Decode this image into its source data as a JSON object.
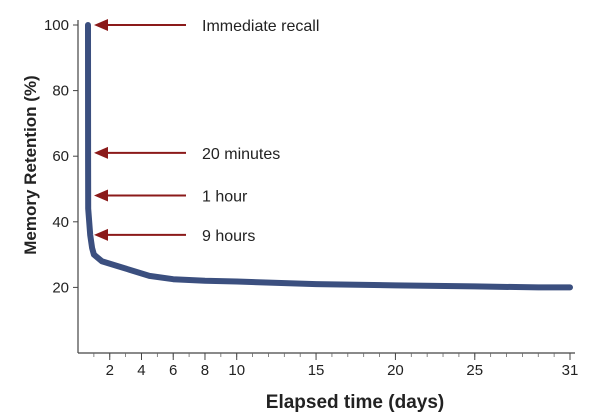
{
  "chart_data": {
    "type": "line",
    "title": "",
    "xlabel": "Elapsed time (days)",
    "ylabel": "Memory Retention (%)",
    "xlim": [
      0,
      31
    ],
    "ylim": [
      0,
      100
    ],
    "x_ticks": [
      2,
      4,
      6,
      8,
      10,
      15,
      20,
      25,
      31
    ],
    "y_ticks": [
      20,
      40,
      60,
      80,
      100
    ],
    "grid": false,
    "series": [
      {
        "color": "#3b4f7f",
        "points": [
          [
            0.0,
            100
          ],
          [
            0.014,
            58
          ],
          [
            0.042,
            44
          ],
          [
            0.375,
            36
          ],
          [
            0.7,
            32
          ],
          [
            1.0,
            30
          ],
          [
            1.5,
            28
          ],
          [
            2.5,
            26.5
          ],
          [
            3.5,
            25
          ],
          [
            4.5,
            23.5
          ],
          [
            6,
            22.5
          ],
          [
            8,
            22
          ],
          [
            10,
            21.8
          ],
          [
            15,
            21
          ],
          [
            20,
            20.6
          ],
          [
            25,
            20.3
          ],
          [
            29,
            20
          ],
          [
            31,
            20
          ]
        ]
      }
    ],
    "annotations": [
      {
        "text": "Immediate recall",
        "x": 0.0,
        "y": 100
      },
      {
        "text": "20 minutes",
        "x": 0.014,
        "y": 61
      },
      {
        "text": "1 hour",
        "x": 0.042,
        "y": 48
      },
      {
        "text": "9 hours",
        "x": 0.375,
        "y": 36
      }
    ],
    "annotation_arrow_color": "#8b1a1a"
  }
}
